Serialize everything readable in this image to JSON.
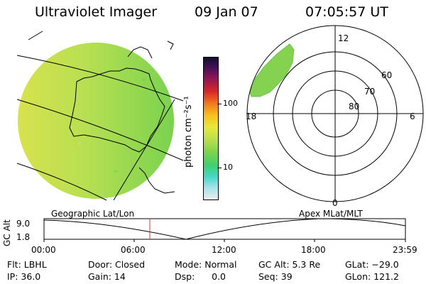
{
  "header": {
    "instrument": "Ultraviolet Imager",
    "date": "09 Jan 07",
    "time": "07:05:57 UT"
  },
  "colorbar": {
    "unit_label": "photon cm⁻²s⁻¹",
    "ticks": [
      "100",
      "10"
    ]
  },
  "polar_plot": {
    "hour_labels": {
      "top": "12",
      "left": "18",
      "right": "6",
      "bottom": "0"
    },
    "lat_labels": [
      "60",
      "70",
      "80"
    ]
  },
  "timeline": {
    "left_title": "Geographic Lat/Lon",
    "right_title": "Apex MLat/MLT",
    "axis_label": "GC Alt",
    "y_ticks": [
      "9.0",
      "1.8"
    ],
    "x_ticks": [
      "00:00",
      "06:00",
      "12:00",
      "18:00",
      "23:59"
    ]
  },
  "info": {
    "col1": [
      "Flt: LBHL",
      "IP: 36.0"
    ],
    "col2": [
      "Door: Closed",
      "Gain: 14"
    ],
    "col3": [
      "Mode: Normal",
      "Dsp:      0.0"
    ],
    "col4": [
      "GC Alt: 5.3 Re",
      "Seq: 39"
    ],
    "col5": [
      "GLat: −29.0",
      "GLon: 121.2"
    ]
  },
  "colors": {
    "image_fill": "#a7dc52",
    "image_edge": "#72cc4a",
    "current_time_marker": "#d9342b"
  }
}
